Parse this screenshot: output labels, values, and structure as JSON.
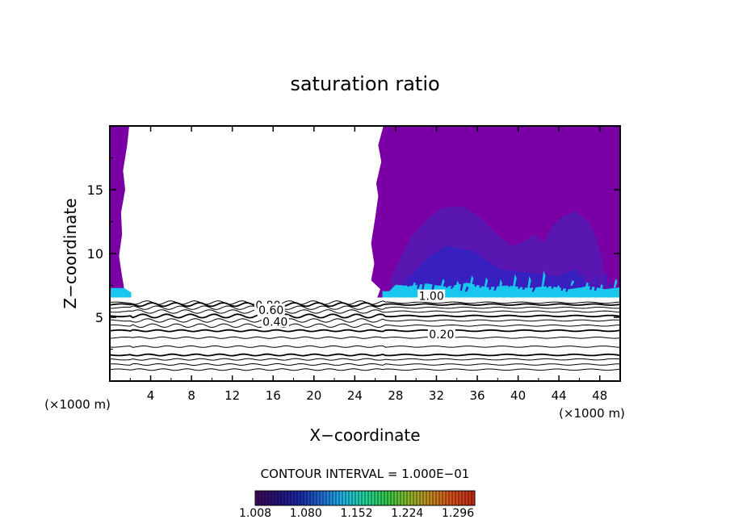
{
  "chart_data": {
    "type": "contour",
    "title": "saturation ratio",
    "xlabel": "X−coordinate",
    "ylabel": "Z−coordinate",
    "x_unit_label": "(×1000 m)",
    "xlim": [
      0,
      50
    ],
    "ylim": [
      0,
      20
    ],
    "x_ticks": [
      4,
      8,
      12,
      16,
      20,
      24,
      28,
      32,
      36,
      40,
      44,
      48
    ],
    "y_ticks": [
      5,
      10,
      15
    ],
    "contour_interval_label": "CONTOUR INTERVAL = 1.000E−01",
    "contour_levels_z": [
      0.9,
      1.3,
      1.7,
      2.05,
      2.7,
      3.4,
      3.95,
      4.35,
      4.75,
      5.1,
      5.45,
      5.75,
      6.0,
      6.15
    ],
    "contour_labels": [
      {
        "text": "0.80",
        "x": 15.5,
        "z": 5.9
      },
      {
        "text": "0.60",
        "x": 15.8,
        "z": 5.5
      },
      {
        "text": "0.40",
        "x": 16.2,
        "z": 4.6
      },
      {
        "text": "0.20",
        "x": 32.5,
        "z": 3.6
      },
      {
        "text": "1.00",
        "x": 31.5,
        "z": 6.6
      }
    ],
    "color_scale": {
      "min": 1.008,
      "max": 1.32,
      "tick_labels": [
        "1.008",
        "1.080",
        "1.152",
        "1.224",
        "1.296"
      ],
      "colors": [
        "#3a0a5c",
        "#24127a",
        "#1a2aa8",
        "#1f6ad0",
        "#20b6e6",
        "#22d69a",
        "#32c84c",
        "#8ab82a",
        "#c48a22",
        "#d4501a",
        "#c22a14"
      ]
    },
    "field_colors": {
      "upper": "#7a00a6",
      "core": "#5a16b0",
      "dense": "#3820c0",
      "band": "#19c6ee"
    }
  }
}
